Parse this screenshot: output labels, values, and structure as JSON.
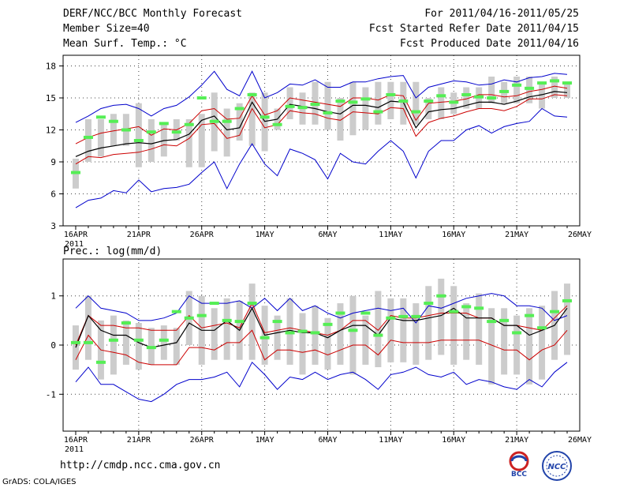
{
  "header": {
    "title": "DERF/NCC/BCC Monthly Forecast",
    "member_size": "Member Size=40",
    "variable": "Mean Surf. Temp.: °C",
    "period": "For 2011/04/16-2011/05/25",
    "started": "Fcst Started Refer Date 2011/04/15",
    "produced": "Fcst Produced Date 2011/04/16"
  },
  "footer": {
    "url": "http://cmdp.ncc.cma.gov.cn",
    "credit": "GrADS: COLA/IGES",
    "logo_bcc": "BCC",
    "logo_ncc": "NCC"
  },
  "colors": {
    "mean": "#000000",
    "spread": "#cc0000",
    "extreme": "#0000cc",
    "box": "#cccccc",
    "bar": "#55ee55"
  },
  "chart_data": [
    {
      "type": "line",
      "title": "Mean Surf. Temp.: °C",
      "x_tick_labels": [
        "16APR",
        "21APR",
        "26APR",
        "1MAY",
        "6MAY",
        "11MAY",
        "16MAY",
        "21MAY",
        "26MAY"
      ],
      "x_year_label": "2011",
      "ylim": [
        3,
        19
      ],
      "y_ticks": [
        3,
        6,
        9,
        12,
        15,
        18
      ],
      "grid": true,
      "days": 40,
      "series": [
        {
          "name": "ensemble max",
          "values": [
            12.7,
            13.3,
            14.0,
            14.3,
            14.4,
            14.0,
            13.3,
            14.0,
            14.3,
            15.1,
            16.2,
            17.5,
            15.8,
            15.2,
            17.5,
            15.0,
            15.5,
            16.3,
            16.2,
            16.7,
            16.0,
            16.0,
            16.5,
            16.5,
            16.8,
            17.0,
            17.1,
            15.0,
            16.0,
            16.3,
            16.6,
            16.5,
            16.2,
            16.3,
            16.7,
            16.5,
            16.9,
            17.0,
            17.3,
            17.2
          ]
        },
        {
          "name": "upper spread",
          "values": [
            10.7,
            11.3,
            11.7,
            11.9,
            12.1,
            12.3,
            11.5,
            12.1,
            12.0,
            12.6,
            13.8,
            14.0,
            13.0,
            13.1,
            15.2,
            13.4,
            13.8,
            15.0,
            14.8,
            14.6,
            14.4,
            14.2,
            15.0,
            15.0,
            14.8,
            15.3,
            15.2,
            12.9,
            14.5,
            14.6,
            14.7,
            14.9,
            15.3,
            15.3,
            15.1,
            15.2,
            15.6,
            15.8,
            16.1,
            15.9
          ]
        },
        {
          "name": "ensemble mean",
          "values": [
            9.5,
            10.0,
            10.3,
            10.5,
            10.7,
            10.8,
            10.7,
            11.0,
            11.1,
            11.6,
            12.9,
            13.3,
            12.0,
            12.2,
            14.6,
            12.8,
            13.0,
            14.4,
            14.2,
            14.0,
            13.7,
            13.5,
            14.3,
            14.3,
            14.1,
            14.7,
            14.6,
            12.2,
            13.7,
            13.9,
            14.0,
            14.3,
            14.6,
            14.6,
            14.4,
            14.7,
            15.1,
            15.3,
            15.6,
            15.5
          ]
        },
        {
          "name": "lower spread",
          "values": [
            8.8,
            9.5,
            9.4,
            9.7,
            9.8,
            9.9,
            10.2,
            10.6,
            10.5,
            11.2,
            12.5,
            12.6,
            11.2,
            11.5,
            14.0,
            12.2,
            12.5,
            13.8,
            13.6,
            13.5,
            13.1,
            12.9,
            13.7,
            13.6,
            13.5,
            14.1,
            14.0,
            11.4,
            12.7,
            13.1,
            13.3,
            13.7,
            14.0,
            14.0,
            13.8,
            14.2,
            14.9,
            14.9,
            15.3,
            15.2
          ]
        },
        {
          "name": "ensemble min",
          "values": [
            4.7,
            5.4,
            5.6,
            6.3,
            6.1,
            7.3,
            6.2,
            6.5,
            6.6,
            6.9,
            8.0,
            9.0,
            6.5,
            8.8,
            10.7,
            8.8,
            7.7,
            10.2,
            9.8,
            9.2,
            7.4,
            9.8,
            9.0,
            8.8,
            10.0,
            11.0,
            10.0,
            7.5,
            10.0,
            11.0,
            11.0,
            12.0,
            12.4,
            11.7,
            12.3,
            12.6,
            12.8,
            14.0,
            13.3,
            13.2
          ]
        }
      ],
      "boxes": [
        [
          6.5,
          9.3
        ],
        [
          9.0,
          13.0
        ],
        [
          9.5,
          13.0
        ],
        [
          10.5,
          13.5
        ],
        [
          10.5,
          13.5
        ],
        [
          8.5,
          14.5
        ],
        [
          9.0,
          13.0
        ],
        [
          9.5,
          12.5
        ],
        [
          11.0,
          13.0
        ],
        [
          8.5,
          13.0
        ],
        [
          8.5,
          13.5
        ],
        [
          10.0,
          15.5
        ],
        [
          9.5,
          14.0
        ],
        [
          11.0,
          14.5
        ],
        [
          10.5,
          15.5
        ],
        [
          10.0,
          15.5
        ],
        [
          12.0,
          14.0
        ],
        [
          13.0,
          16.0
        ],
        [
          12.5,
          15.5
        ],
        [
          12.5,
          16.5
        ],
        [
          12.0,
          16.5
        ],
        [
          11.0,
          15.0
        ],
        [
          11.5,
          16.5
        ],
        [
          12.0,
          16.0
        ],
        [
          12.5,
          16.5
        ],
        [
          13.0,
          16.5
        ],
        [
          12.5,
          16.5
        ],
        [
          12.5,
          16.5
        ],
        [
          13.0,
          15.0
        ],
        [
          13.0,
          16.0
        ],
        [
          13.5,
          15.5
        ],
        [
          14.0,
          16.0
        ],
        [
          14.0,
          16.0
        ],
        [
          14.5,
          17.0
        ],
        [
          14.5,
          16.5
        ],
        [
          14.5,
          17.0
        ],
        [
          14.5,
          17.0
        ],
        [
          14.0,
          16.5
        ],
        [
          15.0,
          17.0
        ],
        [
          15.0,
          16.5
        ]
      ],
      "bars": [
        8.0,
        11.3,
        13.2,
        12.8,
        12.0,
        11.0,
        11.8,
        12.6,
        11.8,
        12.5,
        15.0,
        12.8,
        12.8,
        14.0,
        15.3,
        13.2,
        12.5,
        14.2,
        14.1,
        14.4,
        13.6,
        14.7,
        14.6,
        14.9,
        13.7,
        15.3,
        14.7,
        13.7,
        14.7,
        15.2,
        14.6,
        15.3,
        15.1,
        15.0,
        15.6,
        16.2,
        15.9,
        16.4,
        16.6,
        16.4
      ]
    },
    {
      "type": "line",
      "title": "Prec.: log(mm/d)",
      "x_tick_labels": [
        "16APR",
        "21APR",
        "26APR",
        "1MAY",
        "6MAY",
        "11MAY",
        "16MAY",
        "21MAY",
        "26MAY"
      ],
      "x_year_label": "2011",
      "ylim": [
        -1.75,
        1.75
      ],
      "y_ticks": [
        -1,
        0,
        1
      ],
      "grid": true,
      "days": 40,
      "series": [
        {
          "name": "ensemble max",
          "values": [
            0.75,
            1.0,
            0.75,
            0.7,
            0.65,
            0.5,
            0.5,
            0.55,
            0.65,
            1.0,
            0.85,
            0.85,
            0.85,
            0.9,
            0.75,
            0.95,
            0.7,
            0.95,
            0.7,
            0.8,
            0.65,
            0.55,
            0.65,
            0.7,
            0.75,
            0.7,
            0.75,
            0.45,
            0.8,
            0.75,
            0.85,
            0.95,
            1.0,
            1.05,
            1.0,
            0.8,
            0.8,
            0.75,
            0.5,
            0.6
          ]
        },
        {
          "name": "upper spread",
          "values": [
            0.0,
            0.6,
            0.4,
            0.4,
            0.35,
            0.35,
            0.3,
            0.3,
            0.3,
            0.6,
            0.35,
            0.4,
            0.45,
            0.35,
            0.85,
            0.25,
            0.3,
            0.35,
            0.3,
            0.25,
            0.2,
            0.3,
            0.5,
            0.5,
            0.3,
            0.6,
            0.55,
            0.55,
            0.6,
            0.65,
            0.65,
            0.65,
            0.55,
            0.55,
            0.4,
            0.4,
            0.35,
            0.3,
            0.55,
            0.8
          ]
        },
        {
          "name": "ensemble mean",
          "values": [
            -0.05,
            0.6,
            0.3,
            0.2,
            0.2,
            0.05,
            -0.05,
            0.0,
            0.05,
            0.45,
            0.3,
            0.3,
            0.5,
            0.3,
            0.75,
            0.2,
            0.25,
            0.3,
            0.25,
            0.25,
            0.15,
            0.3,
            0.4,
            0.4,
            0.2,
            0.55,
            0.5,
            0.5,
            0.55,
            0.6,
            0.75,
            0.55,
            0.55,
            0.55,
            0.4,
            0.4,
            0.2,
            0.3,
            0.4,
            0.75
          ]
        },
        {
          "name": "lower spread",
          "values": [
            -0.3,
            0.2,
            -0.1,
            -0.15,
            -0.2,
            -0.35,
            -0.4,
            -0.4,
            -0.4,
            -0.05,
            -0.05,
            -0.1,
            0.05,
            0.05,
            0.3,
            -0.3,
            -0.1,
            -0.1,
            -0.15,
            -0.1,
            -0.2,
            -0.1,
            0.0,
            0.0,
            -0.2,
            0.1,
            0.05,
            0.05,
            0.05,
            0.1,
            0.1,
            0.1,
            0.1,
            0.0,
            -0.1,
            -0.1,
            -0.3,
            -0.1,
            0.0,
            0.3
          ]
        },
        {
          "name": "ensemble min",
          "values": [
            -0.75,
            -0.45,
            -0.8,
            -0.8,
            -0.95,
            -1.1,
            -1.15,
            -1.0,
            -0.8,
            -0.7,
            -0.7,
            -0.65,
            -0.55,
            -0.85,
            -0.35,
            -0.6,
            -0.9,
            -0.65,
            -0.7,
            -0.55,
            -0.7,
            -0.6,
            -0.55,
            -0.7,
            -0.9,
            -0.6,
            -0.55,
            -0.45,
            -0.6,
            -0.65,
            -0.55,
            -0.8,
            -0.7,
            -0.75,
            -0.85,
            -0.9,
            -0.7,
            -0.85,
            -0.55,
            -0.35
          ]
        }
      ],
      "boxes": [
        [
          -0.5,
          0.4
        ],
        [
          -0.3,
          1.0
        ],
        [
          -0.7,
          0.5
        ],
        [
          -0.6,
          0.6
        ],
        [
          -0.4,
          0.5
        ],
        [
          -0.5,
          0.45
        ],
        [
          -0.4,
          0.35
        ],
        [
          -0.3,
          0.4
        ],
        [
          -0.4,
          0.35
        ],
        [
          0.0,
          1.1
        ],
        [
          -0.4,
          1.0
        ],
        [
          -0.3,
          0.75
        ],
        [
          -0.3,
          0.95
        ],
        [
          -0.3,
          0.9
        ],
        [
          -0.3,
          1.25
        ],
        [
          -0.4,
          0.8
        ],
        [
          -0.3,
          0.6
        ],
        [
          -0.4,
          0.95
        ],
        [
          -0.6,
          0.65
        ],
        [
          -0.4,
          0.8
        ],
        [
          -0.5,
          0.55
        ],
        [
          -0.4,
          0.85
        ],
        [
          -0.6,
          1.0
        ],
        [
          -0.4,
          0.6
        ],
        [
          -0.45,
          1.1
        ],
        [
          -0.35,
          0.95
        ],
        [
          -0.35,
          0.95
        ],
        [
          -0.4,
          0.85
        ],
        [
          -0.3,
          1.2
        ],
        [
          -0.2,
          1.35
        ],
        [
          -0.4,
          1.2
        ],
        [
          -0.3,
          0.85
        ],
        [
          -0.4,
          1.05
        ],
        [
          -0.8,
          0.75
        ],
        [
          -0.6,
          0.75
        ],
        [
          -0.6,
          0.6
        ],
        [
          -0.8,
          0.75
        ],
        [
          -0.7,
          0.8
        ],
        [
          -0.3,
          1.1
        ],
        [
          -0.2,
          1.25
        ]
      ],
      "bars": [
        0.05,
        0.05,
        -0.35,
        0.1,
        0.45,
        0.1,
        -0.05,
        0.1,
        0.68,
        0.55,
        0.6,
        0.85,
        0.5,
        0.48,
        0.85,
        0.15,
        0.48,
        0.25,
        0.28,
        0.25,
        0.42,
        0.65,
        0.3,
        0.65,
        0.2,
        0.55,
        0.58,
        0.58,
        0.85,
        1.0,
        0.68,
        0.78,
        0.75,
        0.48,
        0.5,
        0.25,
        0.6,
        0.35,
        0.68,
        0.9
      ]
    }
  ]
}
